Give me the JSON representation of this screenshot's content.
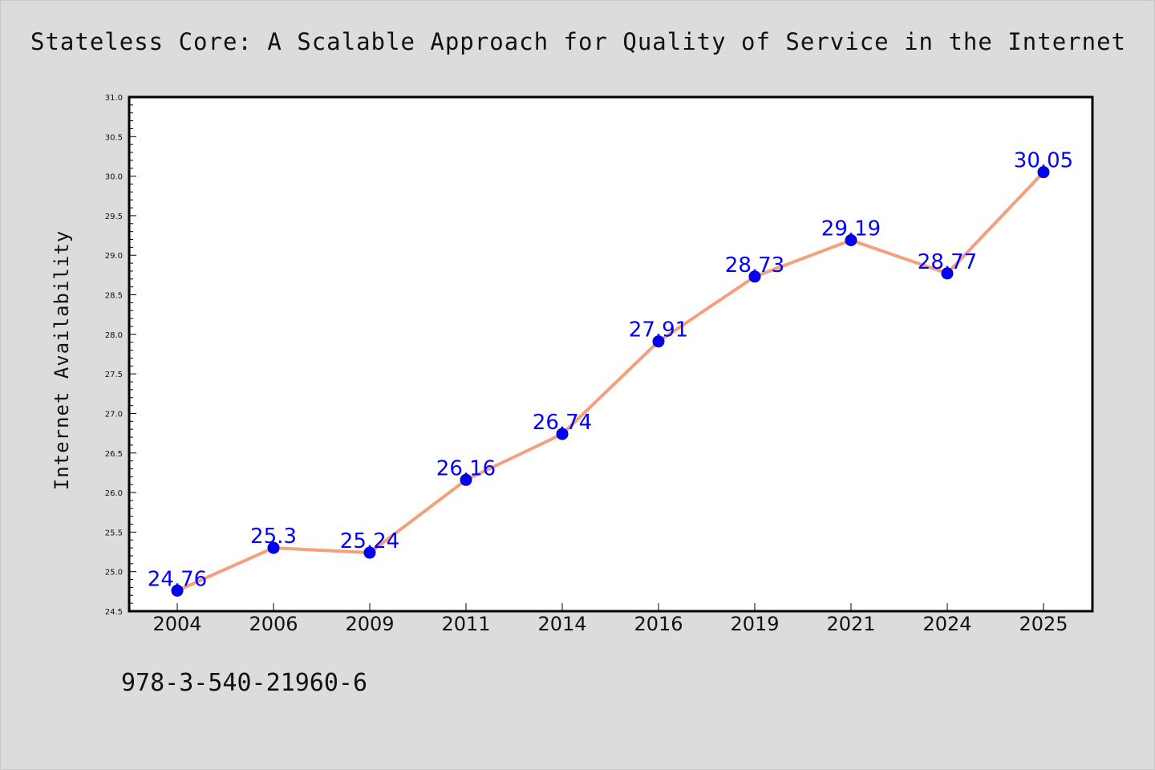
{
  "chart_data": {
    "type": "line",
    "title": "Stateless Core: A Scalable Approach for Quality of Service in the Internet",
    "xlabel": "",
    "ylabel": "Internet Availability",
    "categories": [
      "2004",
      "2006",
      "2009",
      "2011",
      "2014",
      "2016",
      "2019",
      "2021",
      "2024",
      "2025"
    ],
    "series": [
      {
        "values": [
          24.76,
          25.3,
          25.24,
          26.16,
          26.74,
          27.91,
          28.73,
          29.19,
          28.77,
          30.05
        ],
        "labels": [
          "24.76",
          "25.3",
          "25.24",
          "26.16",
          "26.74",
          "27.91",
          "28.73",
          "29.19",
          "28.77",
          "30.05"
        ]
      }
    ],
    "ylim": [
      24.5,
      31.0
    ],
    "yticks": [
      "24.5",
      "25.0",
      "25.5",
      "26.0",
      "26.5",
      "27.0",
      "27.5",
      "28.0",
      "28.5",
      "29.0",
      "29.5",
      "30.0",
      "30.5",
      "31.0"
    ],
    "grid": false,
    "legend": "none",
    "colors": {
      "line": "#f4a07e",
      "marker_fill": "#0000ff",
      "marker_edge": "#00008b",
      "data_label": "#0000ff",
      "background": "#dcdcdc",
      "plot_background": "#ffffff"
    }
  },
  "footnote": "978-3-540-21960-6"
}
